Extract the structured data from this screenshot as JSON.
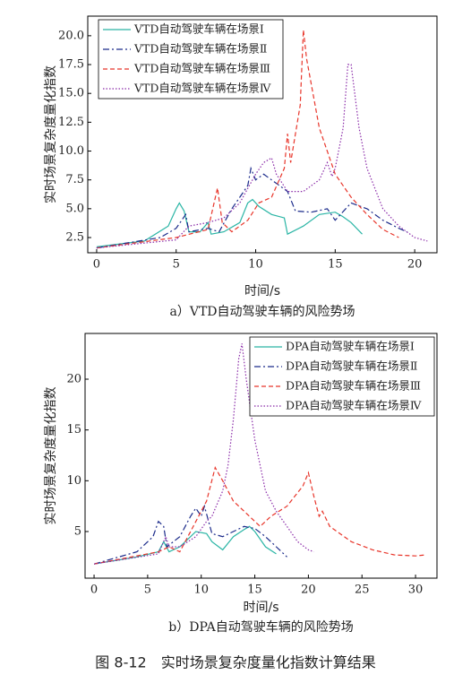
{
  "chart_data": [
    {
      "type": "line",
      "xlabel": "时间/s",
      "ylabel": "实时场景复杂度量化指数",
      "caption": "a）VTD自动驾驶车辆的风险势场",
      "xlim": [
        -0.56,
        21.4
      ],
      "ylim": [
        1.18,
        21.7
      ],
      "xticks": [
        0,
        5,
        10,
        15,
        20
      ],
      "yticks": [
        2.5,
        {
          "value": 5,
          "label": "5.0"
        },
        7.5,
        {
          "value": 10,
          "label": "10.0"
        },
        12.5,
        {
          "value": 15,
          "label": "15.0"
        },
        17.5,
        {
          "value": 20,
          "label": "20.0"
        }
      ],
      "legend": "upper left",
      "grid": false,
      "series": [
        {
          "name": "VTD自动驾驶车辆在场景Ⅰ",
          "color": "#2ab5a5",
          "dash": "solid",
          "x": [
            0,
            3,
            4.5,
            5,
            5.2,
            5.5,
            5.8,
            6.5,
            7,
            7.2,
            8,
            9,
            9.5,
            9.8,
            10.2,
            11,
            11.8,
            12,
            13,
            14,
            15,
            15.5,
            16,
            16.7
          ],
          "values": [
            1.7,
            2.2,
            3.5,
            5.0,
            5.5,
            4.8,
            3.0,
            3.0,
            3.8,
            2.8,
            3.0,
            3.8,
            5.5,
            5.8,
            5.2,
            4.5,
            4.2,
            2.8,
            3.5,
            4.5,
            4.7,
            4.3,
            3.8,
            2.8
          ]
        },
        {
          "name": "VTD自动驾驶车辆在场景Ⅱ",
          "color": "#1a2a8a",
          "dash": "dashdot",
          "x": [
            0,
            4,
            5,
            5.6,
            5.8,
            7,
            7.7,
            8.5,
            9.5,
            9.7,
            10,
            10.5,
            11,
            11.5,
            12,
            12.5,
            13.5,
            14.5,
            15,
            16,
            17,
            18,
            19,
            19.5
          ],
          "values": [
            1.6,
            2.5,
            3.3,
            4.5,
            3.0,
            3.3,
            3.0,
            5.0,
            7.0,
            8.5,
            7.5,
            8.0,
            7.5,
            7.0,
            6.5,
            4.8,
            4.7,
            5.0,
            4.0,
            5.5,
            5.0,
            4.0,
            3.3,
            3.0
          ]
        },
        {
          "name": "VTD自动驾驶车辆在场景Ⅲ",
          "color": "#e8352a",
          "dash": "dashed",
          "x": [
            0,
            5,
            7,
            7.6,
            7.9,
            8.5,
            9.5,
            10.2,
            11,
            11.8,
            12,
            12.2,
            12.8,
            13,
            13.2,
            14,
            15,
            16,
            17,
            18,
            19
          ],
          "values": [
            1.6,
            2.5,
            3.2,
            6.8,
            3.8,
            3.0,
            4.0,
            5.5,
            6.0,
            8.5,
            11.5,
            9.0,
            14.0,
            20.5,
            18.0,
            12.0,
            8.0,
            6.0,
            4.5,
            3.2,
            2.5
          ]
        },
        {
          "name": "VTD自动驾驶车辆在场景Ⅳ",
          "color": "#8a2aa8",
          "dash": "dotted",
          "x": [
            0,
            5,
            5.8,
            7,
            8,
            9,
            10,
            10.5,
            11,
            11.3,
            12,
            13,
            14,
            14.5,
            14.8,
            15,
            15.5,
            15.8,
            16,
            16.5,
            17,
            18,
            19,
            20,
            20.8
          ],
          "values": [
            1.6,
            2.3,
            3.5,
            3.8,
            4.2,
            5.5,
            8.0,
            9.0,
            9.4,
            8.0,
            6.5,
            6.5,
            7.5,
            9.0,
            7.8,
            8.5,
            12.0,
            17.5,
            17.5,
            12.0,
            8.5,
            5.0,
            3.5,
            2.5,
            2.2
          ]
        }
      ]
    },
    {
      "type": "line",
      "xlabel": "时间/s",
      "ylabel": "实时场景复杂度量化指数",
      "caption": "b）DPA自动驾驶车辆的风险势场",
      "xlim": [
        -0.84,
        32.0
      ],
      "ylim": [
        0.41,
        24.5
      ],
      "xticks": [
        0,
        5,
        10,
        15,
        20,
        25,
        30
      ],
      "yticks": [
        5,
        10,
        15,
        20
      ],
      "legend": "upper right",
      "grid": false,
      "series": [
        {
          "name": "DPA自动驾驶车辆在场景Ⅰ",
          "color": "#2ab5a5",
          "dash": "solid",
          "x": [
            0,
            4,
            6,
            6.5,
            7,
            8,
            9,
            9.5,
            10.5,
            11,
            12,
            13,
            14,
            14.5,
            15,
            16,
            17
          ],
          "values": [
            1.8,
            2.5,
            3.0,
            4.0,
            3.0,
            3.5,
            4.5,
            5.0,
            4.8,
            4.0,
            3.2,
            4.5,
            5.2,
            5.5,
            5.0,
            3.5,
            2.8
          ]
        },
        {
          "name": "DPA自动驾驶车辆在场景Ⅱ",
          "color": "#1a2a8a",
          "dash": "dashdot",
          "x": [
            0,
            4,
            5.5,
            6,
            6.5,
            6.8,
            8,
            9,
            9.5,
            10,
            10.3,
            11,
            12,
            13,
            14,
            15,
            16,
            17,
            18
          ],
          "values": [
            1.8,
            3.0,
            4.5,
            6.0,
            5.5,
            3.5,
            4.5,
            6.5,
            7.3,
            6.5,
            7.5,
            4.8,
            4.5,
            5.0,
            5.5,
            5.3,
            4.5,
            3.5,
            2.5
          ]
        },
        {
          "name": "DPA自动驾驶车辆在场景Ⅲ",
          "color": "#e8352a",
          "dash": "dashed",
          "x": [
            0,
            6,
            7,
            8,
            9,
            10.5,
            11.3,
            12,
            13,
            14.5,
            15.5,
            16.5,
            18,
            19.5,
            20,
            20.5,
            21,
            21.3,
            22,
            24,
            26,
            28,
            30,
            31
          ],
          "values": [
            1.8,
            3.0,
            3.5,
            3.0,
            5.0,
            8.0,
            11.3,
            10.0,
            8.0,
            6.5,
            5.5,
            6.5,
            7.5,
            9.5,
            10.8,
            8.5,
            6.5,
            7.0,
            5.5,
            4.0,
            3.2,
            2.7,
            2.6,
            2.7
          ]
        },
        {
          "name": "DPA自动驾驶车辆在场景Ⅳ",
          "color": "#8a2aa8",
          "dash": "dotted",
          "x": [
            0,
            6,
            6.7,
            7,
            8,
            9.5,
            10.5,
            11,
            12,
            12.5,
            13,
            13.5,
            13.8,
            14.2,
            15,
            16,
            17,
            18,
            19,
            20,
            20.5
          ],
          "values": [
            1.8,
            2.8,
            4.5,
            3.5,
            3.5,
            4.5,
            6.0,
            6.5,
            9.0,
            11.5,
            16.0,
            22.0,
            23.5,
            20.0,
            14.0,
            9.0,
            7.0,
            5.5,
            4.0,
            3.2,
            3.0
          ]
        }
      ]
    }
  ],
  "caption": "图 8-12　实时场景复杂度量化指数计算结果"
}
